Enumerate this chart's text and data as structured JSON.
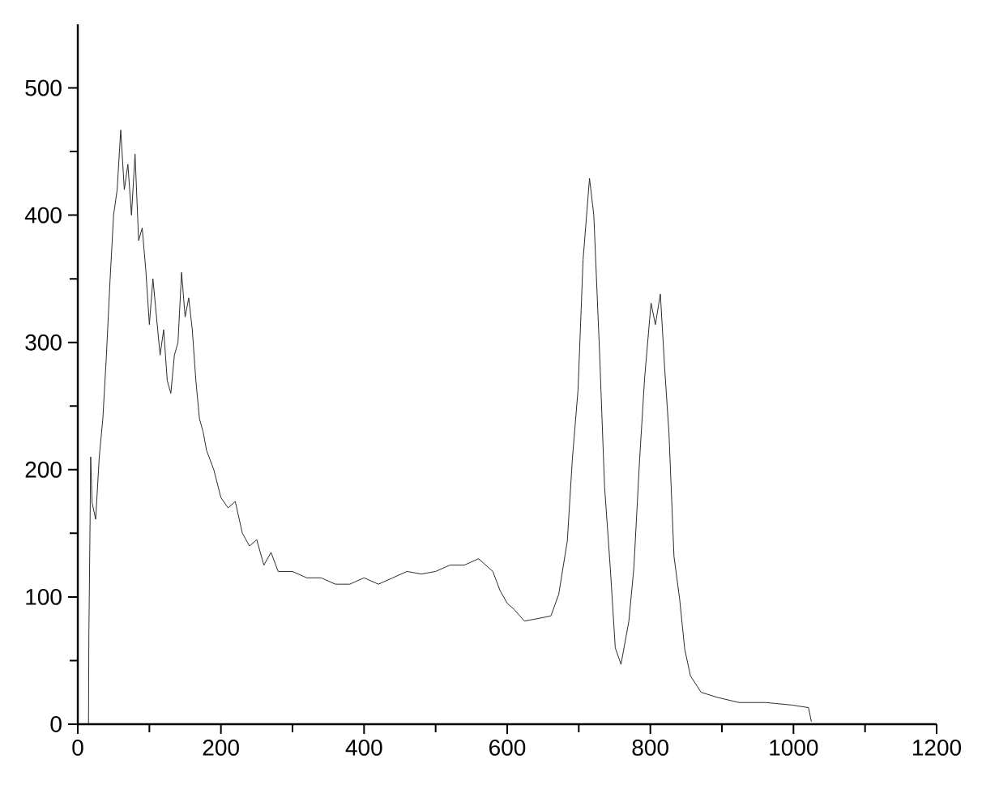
{
  "chart_data": {
    "type": "line",
    "marker": "none",
    "color": "#2a2a2a",
    "x": [
      15,
      15.5,
      17,
      18,
      20,
      25,
      30,
      35,
      40,
      45,
      50,
      55,
      60,
      65,
      70,
      75,
      80,
      85,
      90,
      95,
      100,
      105,
      110,
      115,
      120,
      125,
      130,
      135,
      140,
      145,
      150,
      155,
      160,
      165,
      170,
      175,
      180,
      190,
      200,
      210,
      220,
      230,
      240,
      250,
      260,
      270,
      280,
      300,
      320,
      340,
      360,
      380,
      400,
      420,
      440,
      460,
      480,
      500,
      520,
      540,
      560,
      580,
      590,
      600,
      610,
      624,
      661,
      672,
      684,
      691,
      699,
      706,
      715,
      721,
      729,
      736,
      744,
      751,
      759,
      770,
      777,
      785,
      792,
      801,
      807,
      814,
      820,
      826,
      833,
      841,
      848,
      856,
      871,
      894,
      924,
      961,
      998,
      1021,
      1025
    ],
    "values": [
      0,
      72,
      150,
      210,
      174,
      161,
      210,
      240,
      290,
      348,
      400,
      420,
      467,
      420,
      440,
      400,
      448,
      380,
      390,
      357,
      314,
      350,
      320,
      290,
      310,
      270,
      260,
      290,
      300,
      355,
      320,
      335,
      310,
      270,
      240,
      230,
      215,
      200,
      178,
      170,
      175,
      150,
      140,
      145,
      125,
      135,
      120,
      120,
      115,
      115,
      110,
      110,
      115,
      110,
      115,
      120,
      118,
      120,
      125,
      125,
      130,
      120,
      105,
      95,
      90,
      81,
      85,
      102,
      144,
      208,
      263,
      365,
      429,
      400,
      293,
      187,
      123,
      60,
      47,
      81,
      123,
      208,
      272,
      331,
      314,
      338,
      280,
      229,
      132,
      98,
      59,
      38,
      25,
      21,
      17,
      17,
      15,
      13,
      2
    ],
    "xlim": [
      0,
      1200
    ],
    "ylim": [
      0,
      550
    ],
    "xticks": [
      0,
      200,
      400,
      600,
      800,
      1000,
      1200
    ],
    "yticks": [
      0,
      100,
      200,
      300,
      400,
      500
    ]
  }
}
